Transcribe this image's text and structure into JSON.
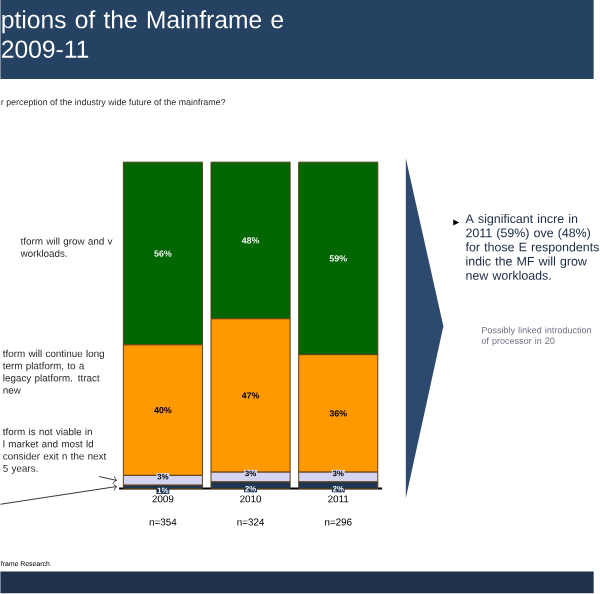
{
  "chart_data": {
    "type": "bar",
    "stacked": true,
    "title": "ptions of the Mainframe e 2009-11",
    "subtitle": "r perception of the industry wide future of the mainframe?",
    "categories": [
      "2009",
      "2010",
      "2011"
    ],
    "series": [
      {
        "color": "#1f3552",
        "values": [
          1,
          2,
          2
        ],
        "value_labels": [
          "1%",
          "2%",
          "2%"
        ]
      },
      {
        "name": "tform is not viable in l market and most ld consider exit n the next 5 years.",
        "color": "#d4d4f0",
        "values": [
          3,
          3,
          3
        ],
        "value_labels": [
          "3%",
          "3%",
          "3%"
        ]
      },
      {
        "name": "tform will continue long term platform, to a legacy platform. ttract new",
        "color": "#ff9900",
        "values": [
          40,
          47,
          36
        ],
        "value_labels": [
          "40%",
          "47%",
          "36%"
        ]
      },
      {
        "name": "tform will grow and v workloads.",
        "color": "#006600",
        "values": [
          56,
          48,
          59
        ],
        "value_labels": [
          "56%",
          "48%",
          "59%"
        ]
      }
    ],
    "annotations": [
      "n=354",
      "n=324",
      "n=296",
      "A significant incre in 2011 (59%) ove (48%) for those E respondents indic the MF will grow new workloads.",
      "Possibly linked introduction of processor in 20",
      "frame Research"
    ]
  }
}
